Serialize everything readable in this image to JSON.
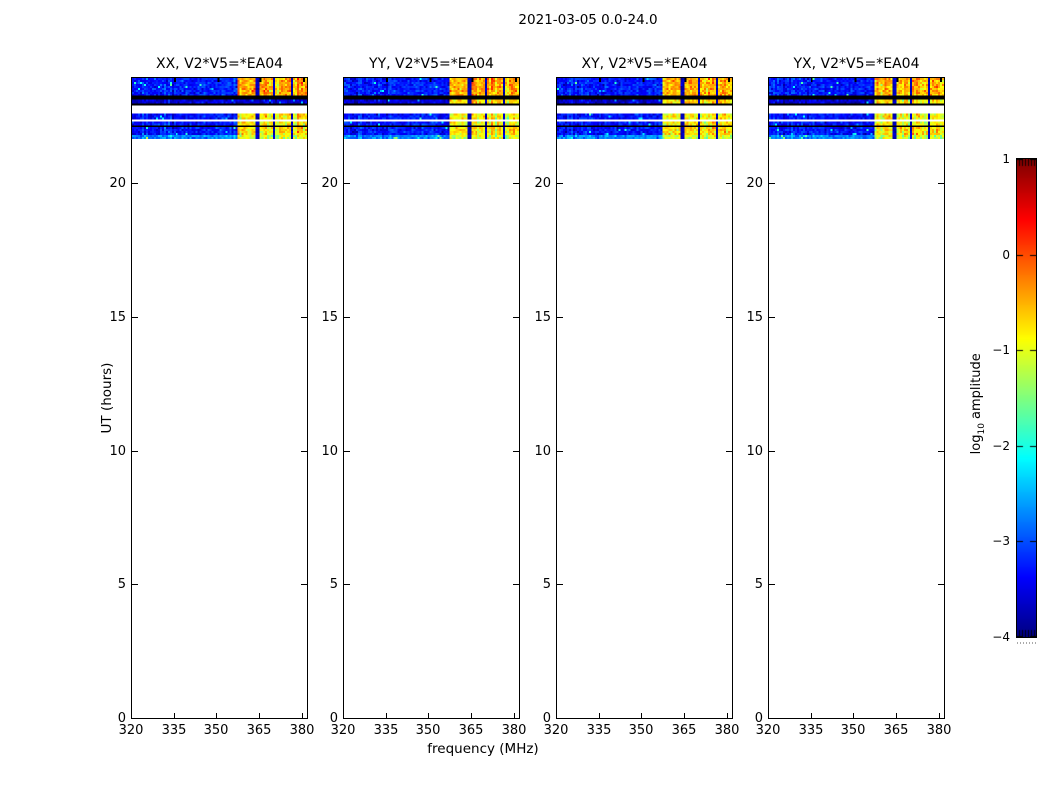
{
  "figure": {
    "title": "2021-03-05 0.0-24.0"
  },
  "chart_data": {
    "type": "heatmap",
    "title": "2021-03-05 0.0-24.0",
    "xlabel": "frequency (MHz)",
    "ylabel": "UT (hours)",
    "panels": [
      {
        "label": "XX, V2*V5=*EA04",
        "mid_row_rfi": false,
        "seed": 11
      },
      {
        "label": "YY, V2*V5=*EA04",
        "mid_row_rfi": true,
        "seed": 29
      },
      {
        "label": "XY, V2*V5=*EA04",
        "mid_row_rfi": true,
        "seed": 47
      },
      {
        "label": "YX, V2*V5=*EA04",
        "mid_row_rfi": true,
        "seed": 83
      }
    ],
    "x": {
      "label": "frequency (MHz)",
      "ticks": [
        320,
        335,
        350,
        365,
        380
      ],
      "range": [
        320,
        382.2
      ],
      "grid": false
    },
    "y": {
      "label": "UT (hours)",
      "ticks": [
        0,
        5,
        10,
        15,
        20
      ],
      "range": [
        0,
        24
      ],
      "grid": false
    },
    "colorbar": {
      "label": "log10 amplitude",
      "label_parts": {
        "pre": "log",
        "sub": "10",
        "post": " amplitude"
      },
      "ticks": [
        1,
        0,
        -1,
        -2,
        -3,
        -4
      ],
      "range": [
        -4,
        1
      ],
      "colormap": "jet"
    },
    "data_ut_range": [
      21.72,
      24.0
    ],
    "rfi_blocks_mhz": [
      [
        356.5,
        363.2
      ],
      [
        364.2,
        369.3
      ],
      [
        370.3,
        375.3
      ],
      [
        376.3,
        381.3
      ]
    ],
    "bands": [
      {
        "ut": [
          23.36,
          24.0
        ],
        "kind": "noise",
        "base": -3.25,
        "rfi": -0.45
      },
      {
        "ut": [
          23.21,
          23.36
        ],
        "kind": "black"
      },
      {
        "ut": [
          23.07,
          23.21
        ],
        "kind": "noise",
        "base": -3.6,
        "rfi": -0.7,
        "rfi_optional": true
      },
      {
        "ut": [
          22.99,
          23.07
        ],
        "kind": "black"
      },
      {
        "ut": [
          22.66,
          22.99
        ],
        "kind": "white"
      },
      {
        "ut": [
          22.47,
          22.66
        ],
        "kind": "noise",
        "base": -3.3,
        "rfi": -0.85
      },
      {
        "ut": [
          22.4,
          22.47
        ],
        "kind": "white"
      },
      {
        "ut": [
          22.21,
          22.4
        ],
        "kind": "noise",
        "base": -3.3,
        "rfi": -0.85
      },
      {
        "ut": [
          22.13,
          22.21
        ],
        "kind": "black"
      },
      {
        "ut": [
          21.9,
          22.13
        ],
        "kind": "noise",
        "base": -3.3,
        "rfi": -0.75
      },
      {
        "ut": [
          21.84,
          21.9
        ],
        "kind": "white"
      },
      {
        "ut": [
          21.72,
          21.84
        ],
        "kind": "noise",
        "base": -2.7,
        "rfi": -1.1
      }
    ]
  }
}
